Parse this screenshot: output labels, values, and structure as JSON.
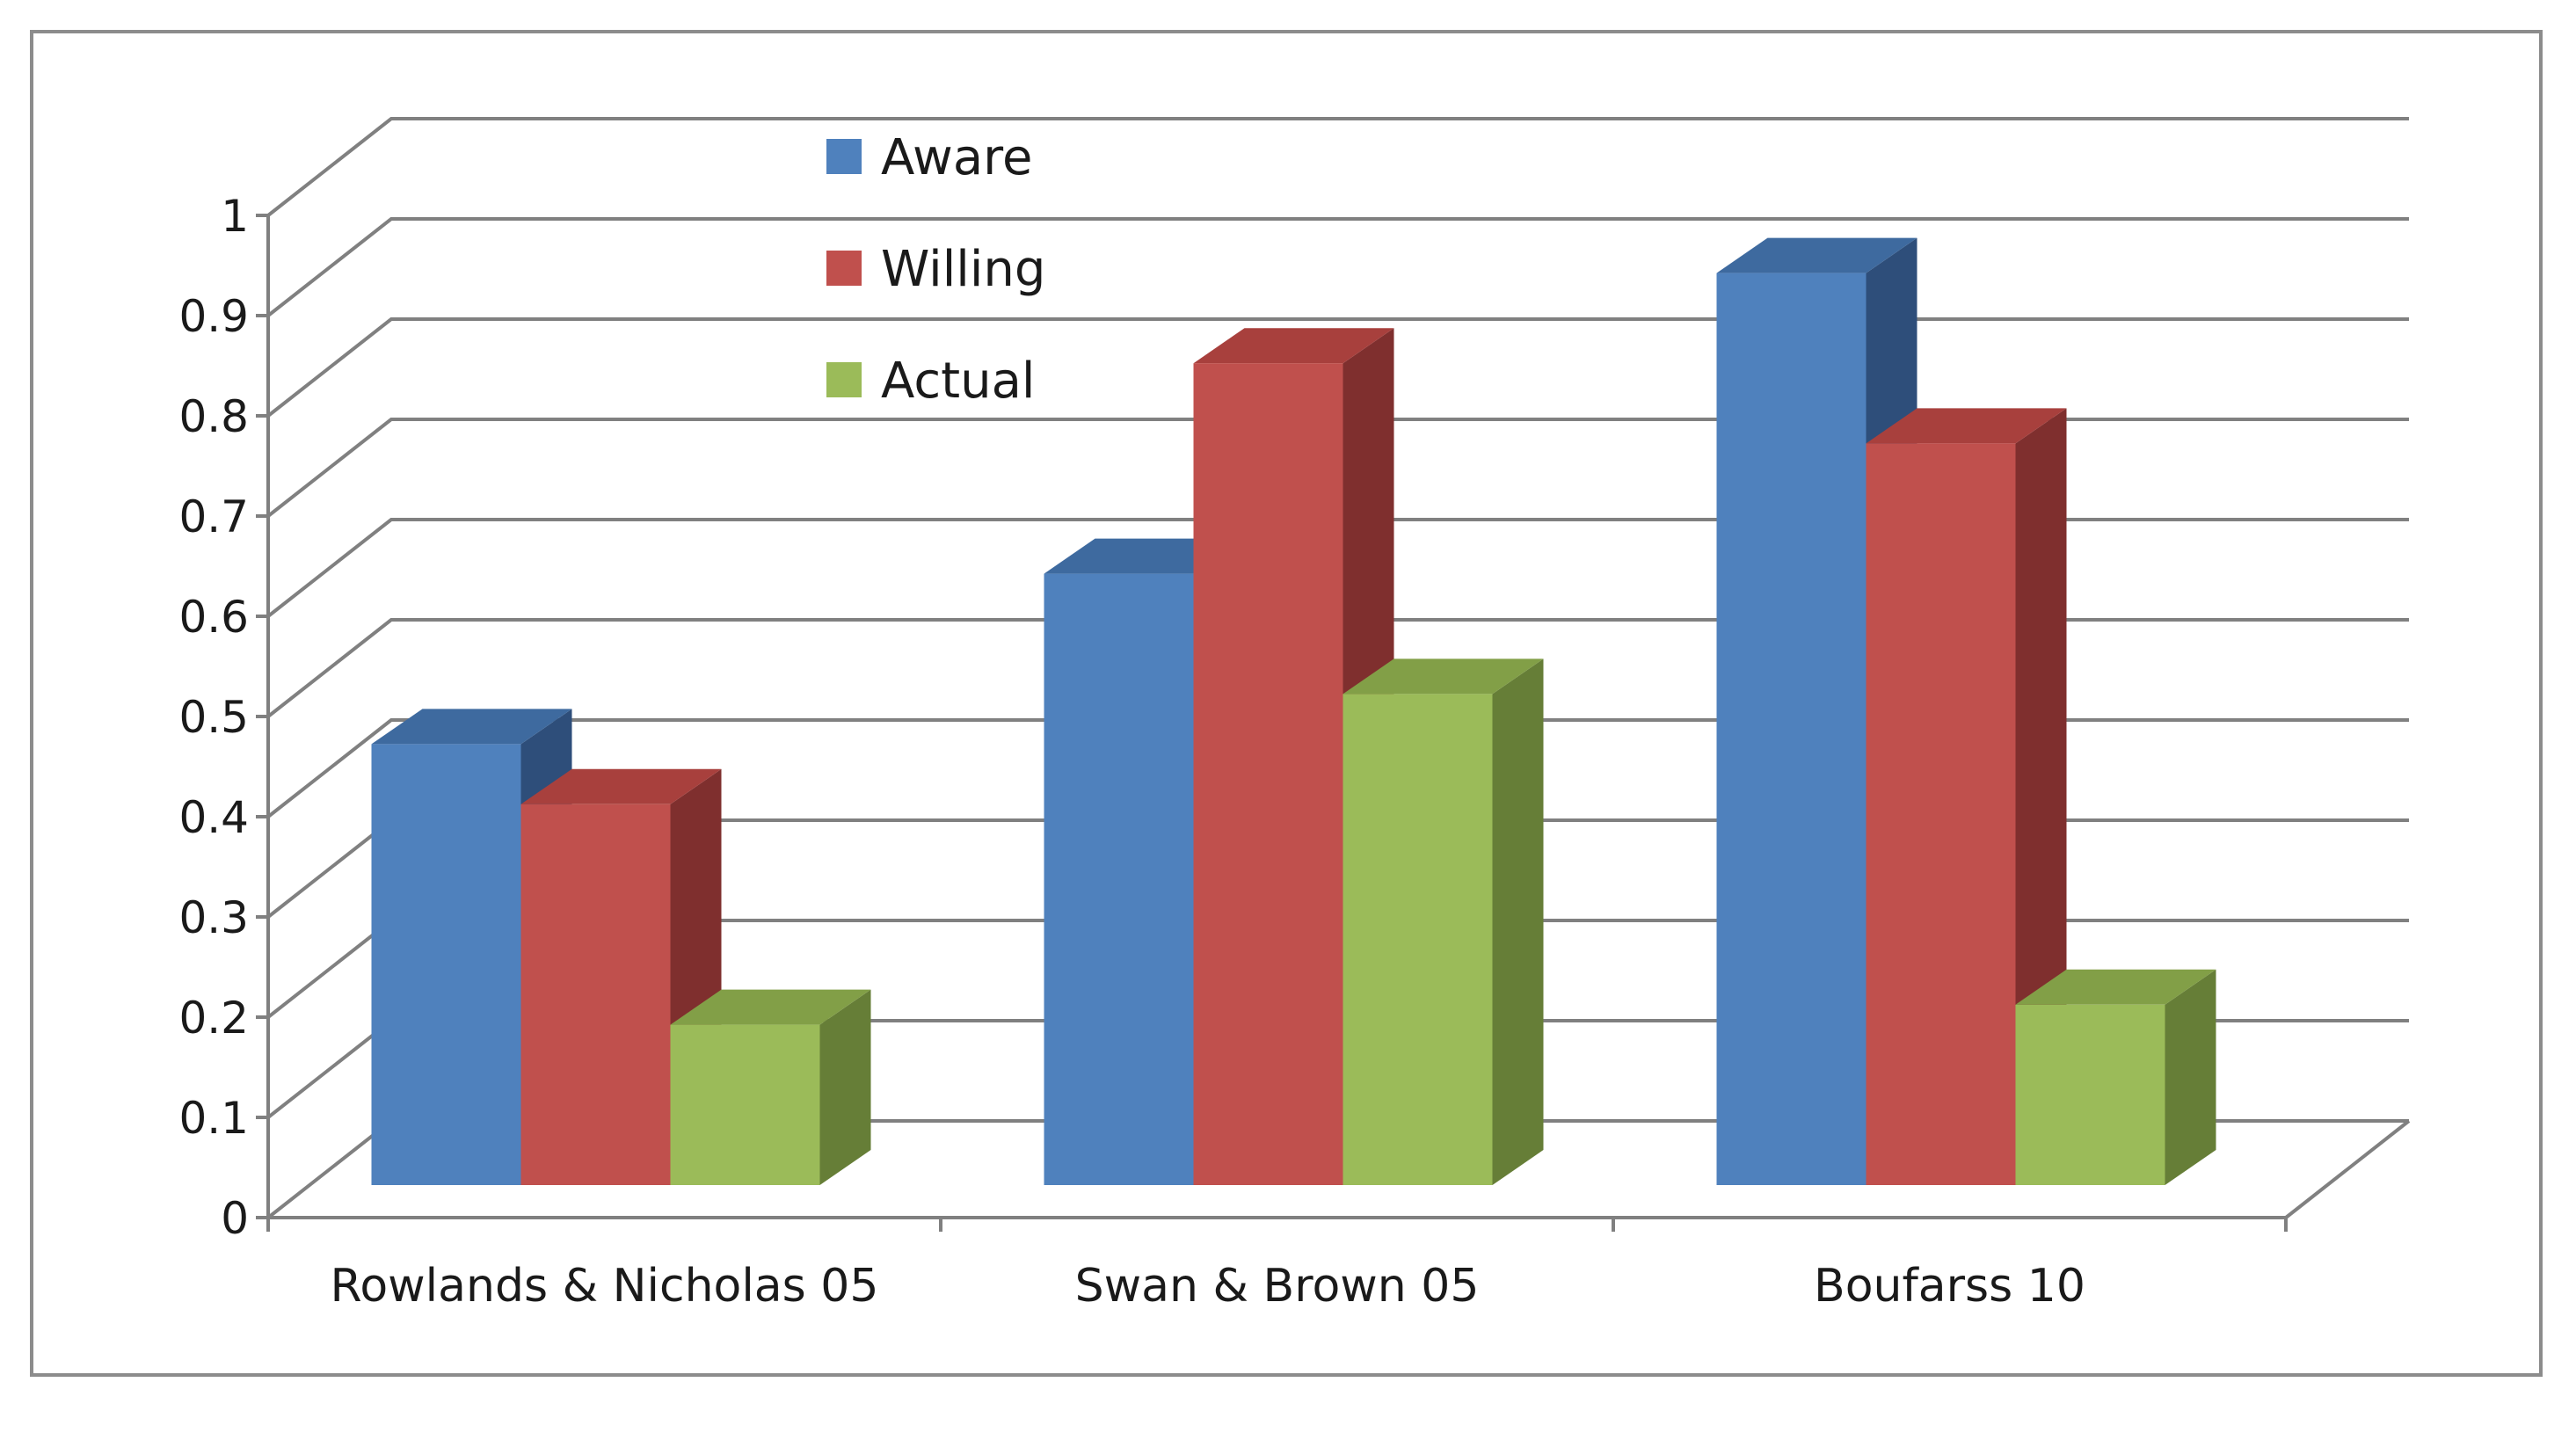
{
  "colors": {
    "aware": "#4f81bd",
    "aware_top": "#3e6a9f",
    "aware_side": "#2e4e7a",
    "willing": "#c0504d",
    "willing_top": "#a8403d",
    "willing_side": "#7f2f2e",
    "actual": "#9bbb59",
    "actual_top": "#829f47",
    "actual_side": "#667e37",
    "grid": "#808080"
  },
  "chart_data": {
    "type": "bar",
    "style": "3d-clustered-column",
    "categories": [
      "Rowlands & Nicholas 05",
      "Swan & Brown 05",
      "Boufarss 10"
    ],
    "series": [
      {
        "name": "Aware",
        "values": [
          0.44,
          0.61,
          0.91
        ]
      },
      {
        "name": "Willing",
        "values": [
          0.38,
          0.82,
          0.74
        ]
      },
      {
        "name": "Actual",
        "values": [
          0.16,
          0.49,
          0.18
        ]
      }
    ],
    "y_ticks": [
      "0",
      "0.1",
      "0.2",
      "0.3",
      "0.4",
      "0.5",
      "0.6",
      "0.7",
      "0.8",
      "0.9",
      "1"
    ],
    "ylim": [
      0,
      1
    ],
    "grid": true,
    "legend_position": "top-left inside plot"
  }
}
